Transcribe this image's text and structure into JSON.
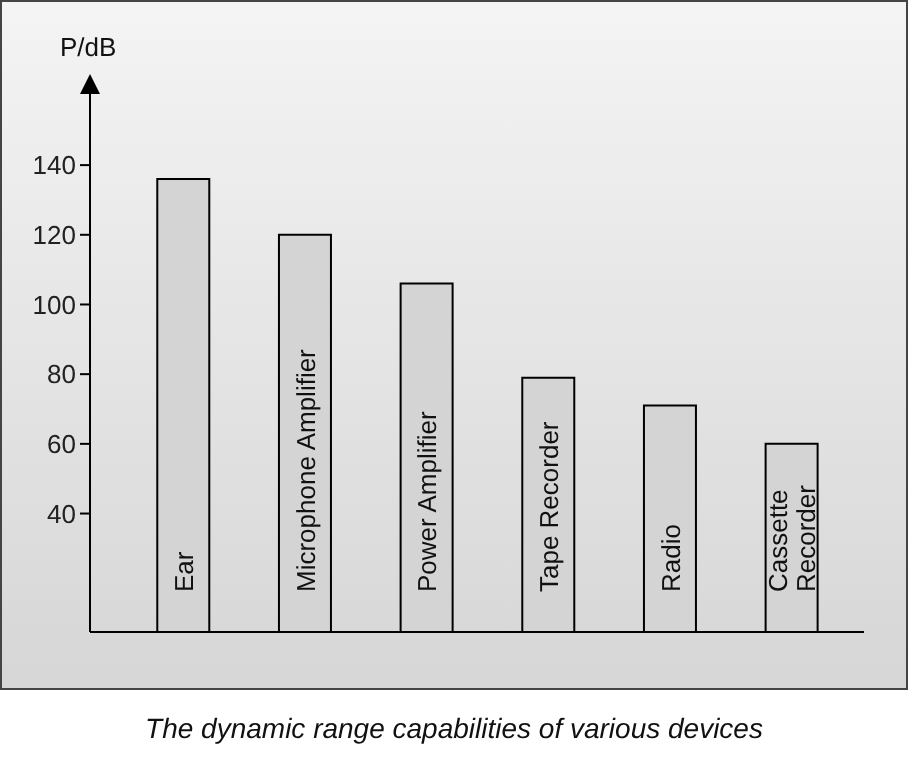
{
  "chart_data": {
    "type": "bar",
    "ylabel": "P/dB",
    "categories": [
      "Ear",
      "Microphone Amplifier",
      "Power Amplifier",
      "Tape Recorder",
      "Radio",
      "Cassette Recorder"
    ],
    "values": [
      136,
      120,
      106,
      79,
      71,
      60
    ],
    "color": "#d4d4d4",
    "ylim": [
      6,
      165
    ],
    "yticks": [
      40,
      60,
      80,
      100,
      120,
      140
    ],
    "grid": false,
    "legend": false,
    "annotations": [
      "The dynamic range capabilities of various devices"
    ]
  }
}
